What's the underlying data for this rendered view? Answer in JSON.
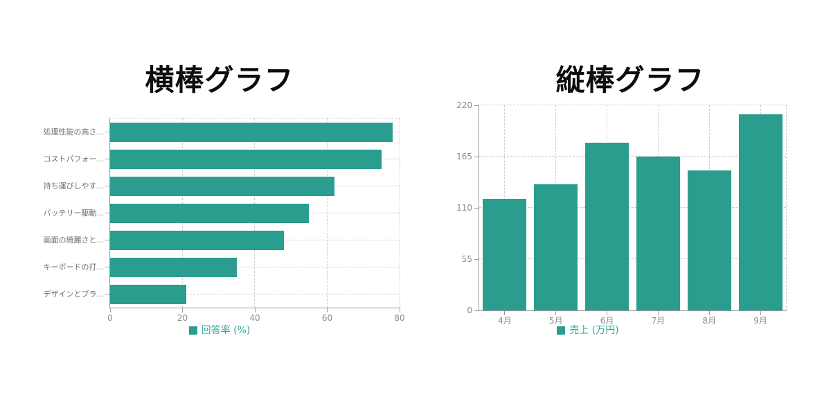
{
  "colors": {
    "bar": "#2a9d8f",
    "legend_text": "#2fa89b",
    "axis": "#9a9a9a",
    "grid": "#cccccc",
    "tick_label": "#8a8a8a",
    "category_label": "#6e6e6e",
    "title": "#0d0d0d"
  },
  "chart_data": [
    {
      "type": "bar",
      "orientation": "horizontal",
      "title": "横棒グラフ",
      "legend": "回答率 (%)",
      "legend_position": "bottom",
      "categories": [
        "処理性能の高さ...",
        "コストパフォー...",
        "持ち運びしやす...",
        "バッテリー駆動...",
        "画面の綺麗さと...",
        "キーボードの打...",
        "デザインとブラ..."
      ],
      "values": [
        78,
        75,
        62,
        55,
        48,
        35,
        21
      ],
      "x_ticks": [
        0,
        20,
        40,
        60,
        80
      ],
      "xlim": [
        0,
        80
      ],
      "xlabel": "",
      "ylabel": "",
      "grid": "dashed"
    },
    {
      "type": "bar",
      "orientation": "vertical",
      "title": "縦棒グラフ",
      "legend": "売上 (万円)",
      "legend_position": "bottom",
      "categories": [
        "4月",
        "5月",
        "6月",
        "7月",
        "8月",
        "9月"
      ],
      "values": [
        120,
        135,
        180,
        165,
        150,
        210
      ],
      "y_ticks": [
        0,
        55,
        110,
        165,
        220
      ],
      "ylim": [
        0,
        220
      ],
      "xlabel": "",
      "ylabel": "",
      "grid": "dashed"
    }
  ]
}
